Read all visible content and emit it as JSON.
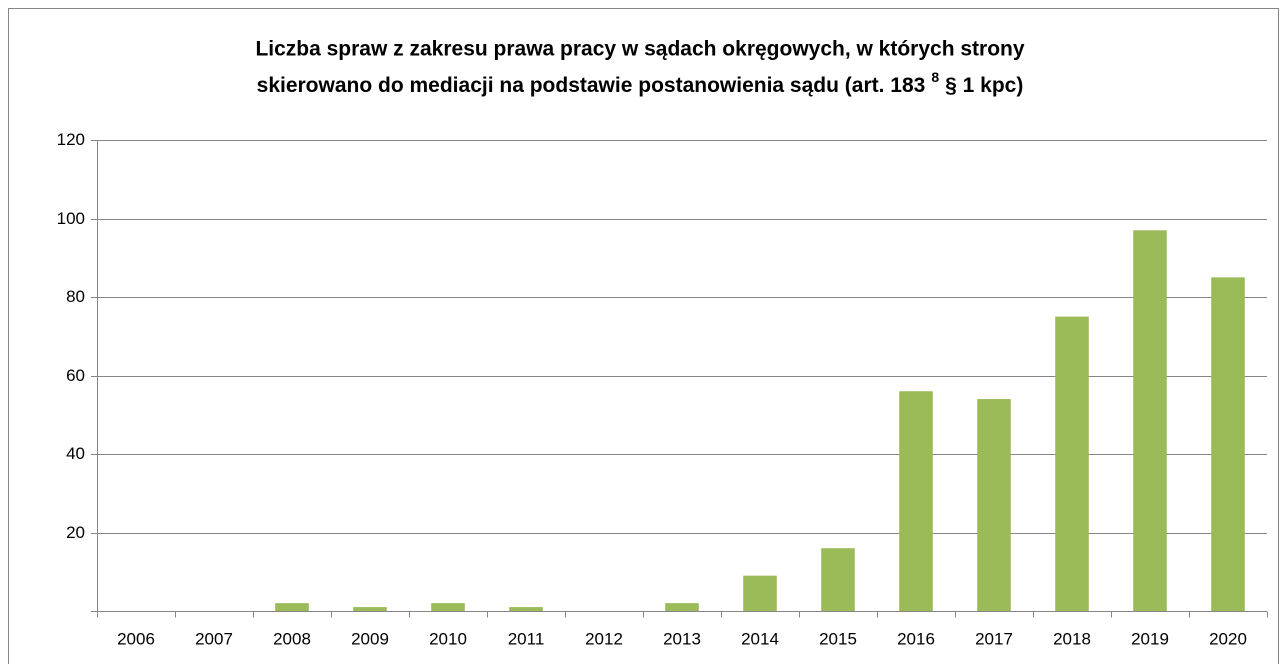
{
  "chart_data": {
    "type": "bar",
    "title": {
      "line1": "Liczba spraw z zakresu prawa pracy w sądach okręgowych, w których strony",
      "line2": "skierowano do mediacji na podstawie postanowienia sądu (art. 183",
      "superscript": "8",
      "line2_end": "§ 1 kpc)"
    },
    "categories": [
      "2006",
      "2007",
      "2008",
      "2009",
      "2010",
      "2011",
      "2012",
      "2013",
      "2014",
      "2015",
      "2016",
      "2017",
      "2018",
      "2019",
      "2020"
    ],
    "values": [
      0,
      0,
      2,
      1,
      2,
      1,
      0,
      2,
      9,
      16,
      56,
      54,
      75,
      97,
      85
    ],
    "color": "#9bbb59",
    "ylim": [
      0,
      120
    ],
    "yticks": [
      20,
      40,
      60,
      80,
      100,
      120
    ],
    "grid": true
  }
}
